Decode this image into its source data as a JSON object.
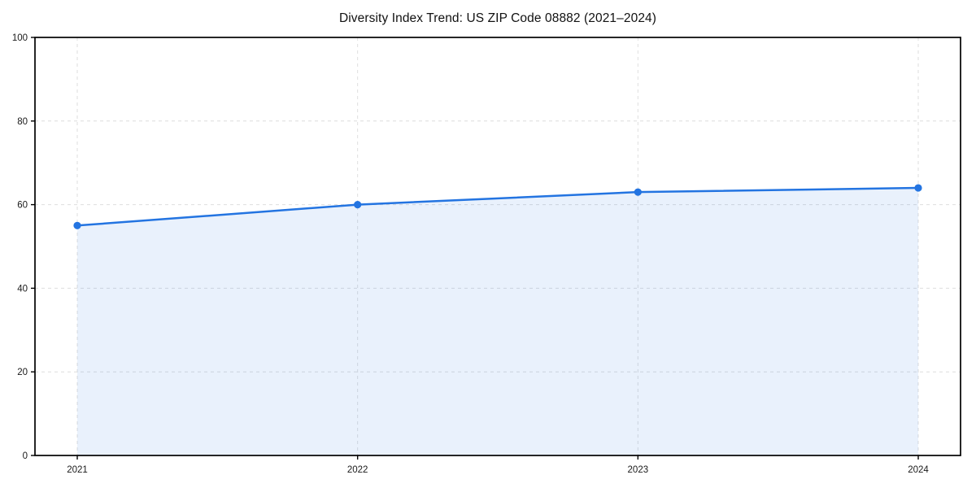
{
  "chart_data": {
    "type": "area",
    "title": "Diversity Index Trend: US ZIP Code 08882 (2021–2024)",
    "categories": [
      "2021",
      "2022",
      "2023",
      "2024"
    ],
    "series": [
      {
        "name": "Diversity Index",
        "values": [
          55,
          60,
          63,
          64
        ]
      }
    ],
    "xlabel": "",
    "ylabel": "",
    "ylim": [
      0,
      100
    ],
    "yticks": [
      0,
      20,
      40,
      60,
      80,
      100
    ],
    "grid": "dashed, both axes, light gray",
    "legend_position": "none",
    "colors": {
      "line": "#2374E1",
      "marker": "#2374E1",
      "fill": "#2374E1",
      "fill_opacity": 0.1,
      "gridline": "#dedede",
      "axis_border": "#000000",
      "tick_label": "#191919"
    },
    "marker_style": "circle"
  }
}
